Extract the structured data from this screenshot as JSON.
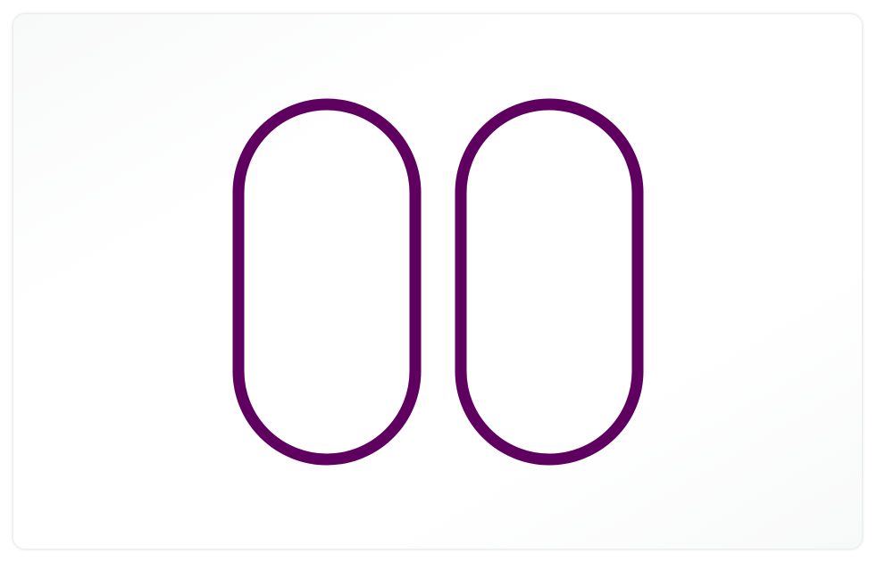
{
  "icon": {
    "name": "pause-icon",
    "stroke_color": "#5f0061",
    "background_color": "#ffffff"
  }
}
